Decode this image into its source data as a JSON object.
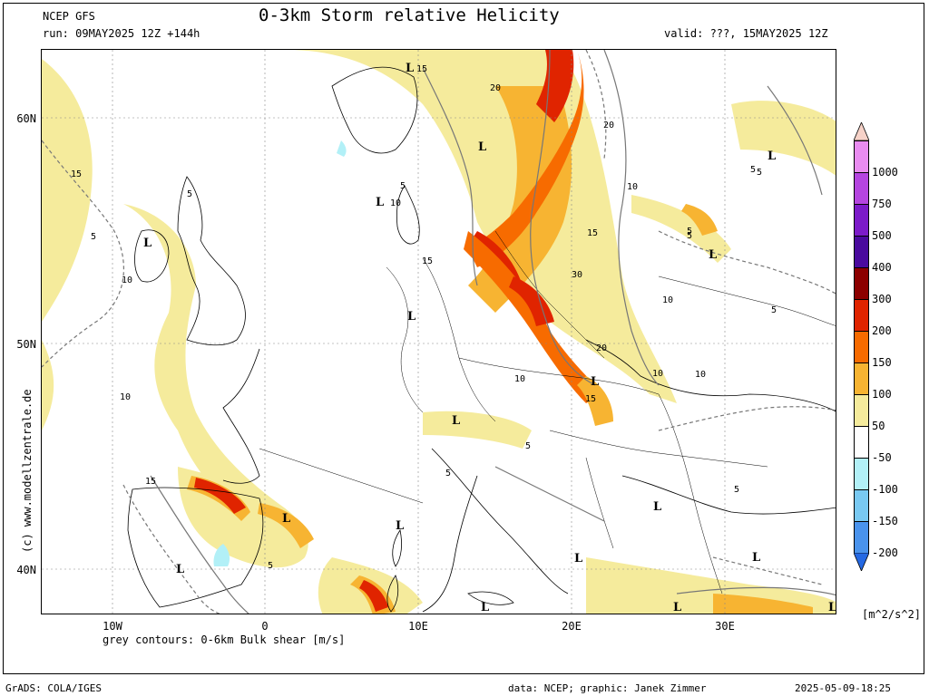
{
  "header": {
    "title": "0-3km Storm relative Helicity",
    "model": "NCEP GFS",
    "run": "run: 09MAY2025 12Z +144h",
    "valid": "valid: ???, 15MAY2025 12Z"
  },
  "map": {
    "lat_labels": [
      "60N",
      "50N",
      "40N"
    ],
    "lon_labels": [
      "10W",
      "0",
      "10E",
      "20E",
      "30E"
    ],
    "low_markers": [
      "L",
      "L",
      "L",
      "L",
      "L",
      "L",
      "L",
      "L",
      "L",
      "L",
      "L",
      "L",
      "L",
      "L",
      "L",
      "L",
      "L",
      "L"
    ],
    "contour_labels": [
      "15",
      "20",
      "5",
      "15",
      "10",
      "5",
      "5",
      "10",
      "15",
      "5",
      "10",
      "10",
      "15",
      "30",
      "20",
      "10",
      "10",
      "15",
      "5",
      "5",
      "5",
      "5",
      "5",
      "10",
      "15",
      "10",
      "20",
      "5",
      "5",
      "5"
    ]
  },
  "colorbar": {
    "levels": [
      "1000",
      "750",
      "500",
      "400",
      "300",
      "200",
      "150",
      "100",
      "50",
      "-50",
      "-100",
      "-150",
      "-200"
    ],
    "colors": [
      "#f6d2c8",
      "#e98cf0",
      "#b545e0",
      "#7c1bc9",
      "#4a0a9e",
      "#8c0000",
      "#e02400",
      "#f76b00",
      "#f7b432",
      "#f5eb9c",
      "#ffffff",
      "#b2f0f7",
      "#79c9f2",
      "#4a93ec",
      "#2569e3"
    ],
    "units": "[m^2/s^2]"
  },
  "caption": "grey contours: 0-6km Bulk shear [m/s]",
  "copyright": "(c) www.modellzentrale.de",
  "footer": {
    "left": "GrADS: COLA/IGES",
    "middle": "data: NCEP; graphic: Janek Zimmer",
    "right": "2025-05-09-18:25"
  }
}
